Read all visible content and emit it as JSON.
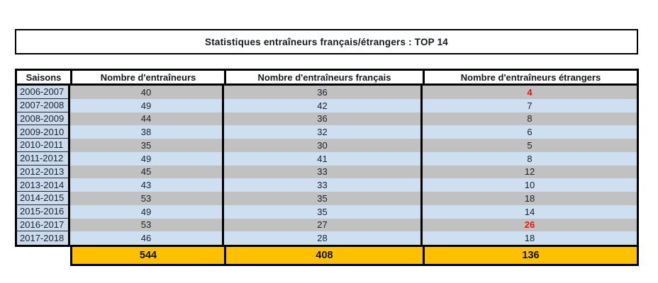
{
  "chart_data": {
    "type": "table",
    "title": "Statistiques entraîneurs français/étrangers : TOP 14",
    "columns": [
      "Saisons",
      "Nombre d'entraîneurs",
      "Nombre d'entraîneurs français",
      "Nombre d'entraîneurs étrangers"
    ],
    "rows": [
      [
        "2006-2007",
        40,
        36,
        4
      ],
      [
        "2007-2008",
        49,
        42,
        7
      ],
      [
        "2008-2009",
        44,
        36,
        8
      ],
      [
        "2009-2010",
        38,
        32,
        6
      ],
      [
        "2010-2011",
        35,
        30,
        5
      ],
      [
        "2011-2012",
        49,
        41,
        8
      ],
      [
        "2012-2013",
        45,
        33,
        12
      ],
      [
        "2013-2014",
        43,
        33,
        10
      ],
      [
        "2014-2015",
        53,
        35,
        18
      ],
      [
        "2015-2016",
        49,
        35,
        14
      ],
      [
        "2016-2017",
        53,
        27,
        26
      ],
      [
        "2017-2018",
        46,
        28,
        18
      ]
    ],
    "totals": [
      544,
      408,
      136
    ]
  },
  "style": {
    "red_foreign_rows": [
      0,
      10
    ]
  },
  "colors": {
    "row_gray": "#c1c1c1",
    "row_blue": "#cfdff2",
    "season_column_blue": "#ccdaed",
    "totals_gold": "#ffc000",
    "highlight_red": "#ee1111",
    "border_black": "#000000"
  }
}
